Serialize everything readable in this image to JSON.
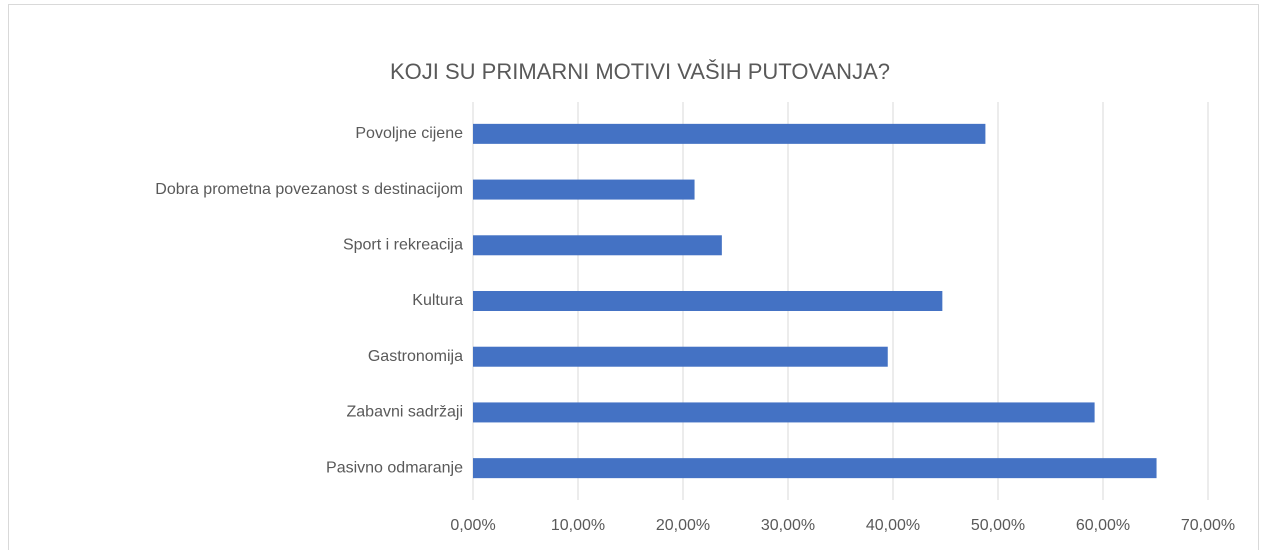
{
  "chart_data": {
    "type": "bar",
    "orientation": "horizontal",
    "title": "KOJI SU PRIMARNI MOTIVI VAŠIH PUTOVANJA?",
    "categories": [
      "Povoljne cijene",
      "Dobra prometna povezanost s destinacijom",
      "Sport i rekreacija",
      "Kultura",
      "Gastronomija",
      "Zabavni sadržaji",
      "Pasivno odmaranje"
    ],
    "values": [
      48.8,
      21.1,
      23.7,
      44.7,
      39.5,
      59.2,
      65.1
    ],
    "color": "#4472c4",
    "xlim": [
      0,
      70
    ],
    "xticks": [
      {
        "value": 0,
        "label": "0,00%"
      },
      {
        "value": 10,
        "label": "10,00%"
      },
      {
        "value": 20,
        "label": "20,00%"
      },
      {
        "value": 30,
        "label": "30,00%"
      },
      {
        "value": 40,
        "label": "40,00%"
      },
      {
        "value": 50,
        "label": "50,00%"
      },
      {
        "value": 60,
        "label": "60,00%"
      },
      {
        "value": 70,
        "label": "70,00%"
      }
    ],
    "grid": true
  }
}
